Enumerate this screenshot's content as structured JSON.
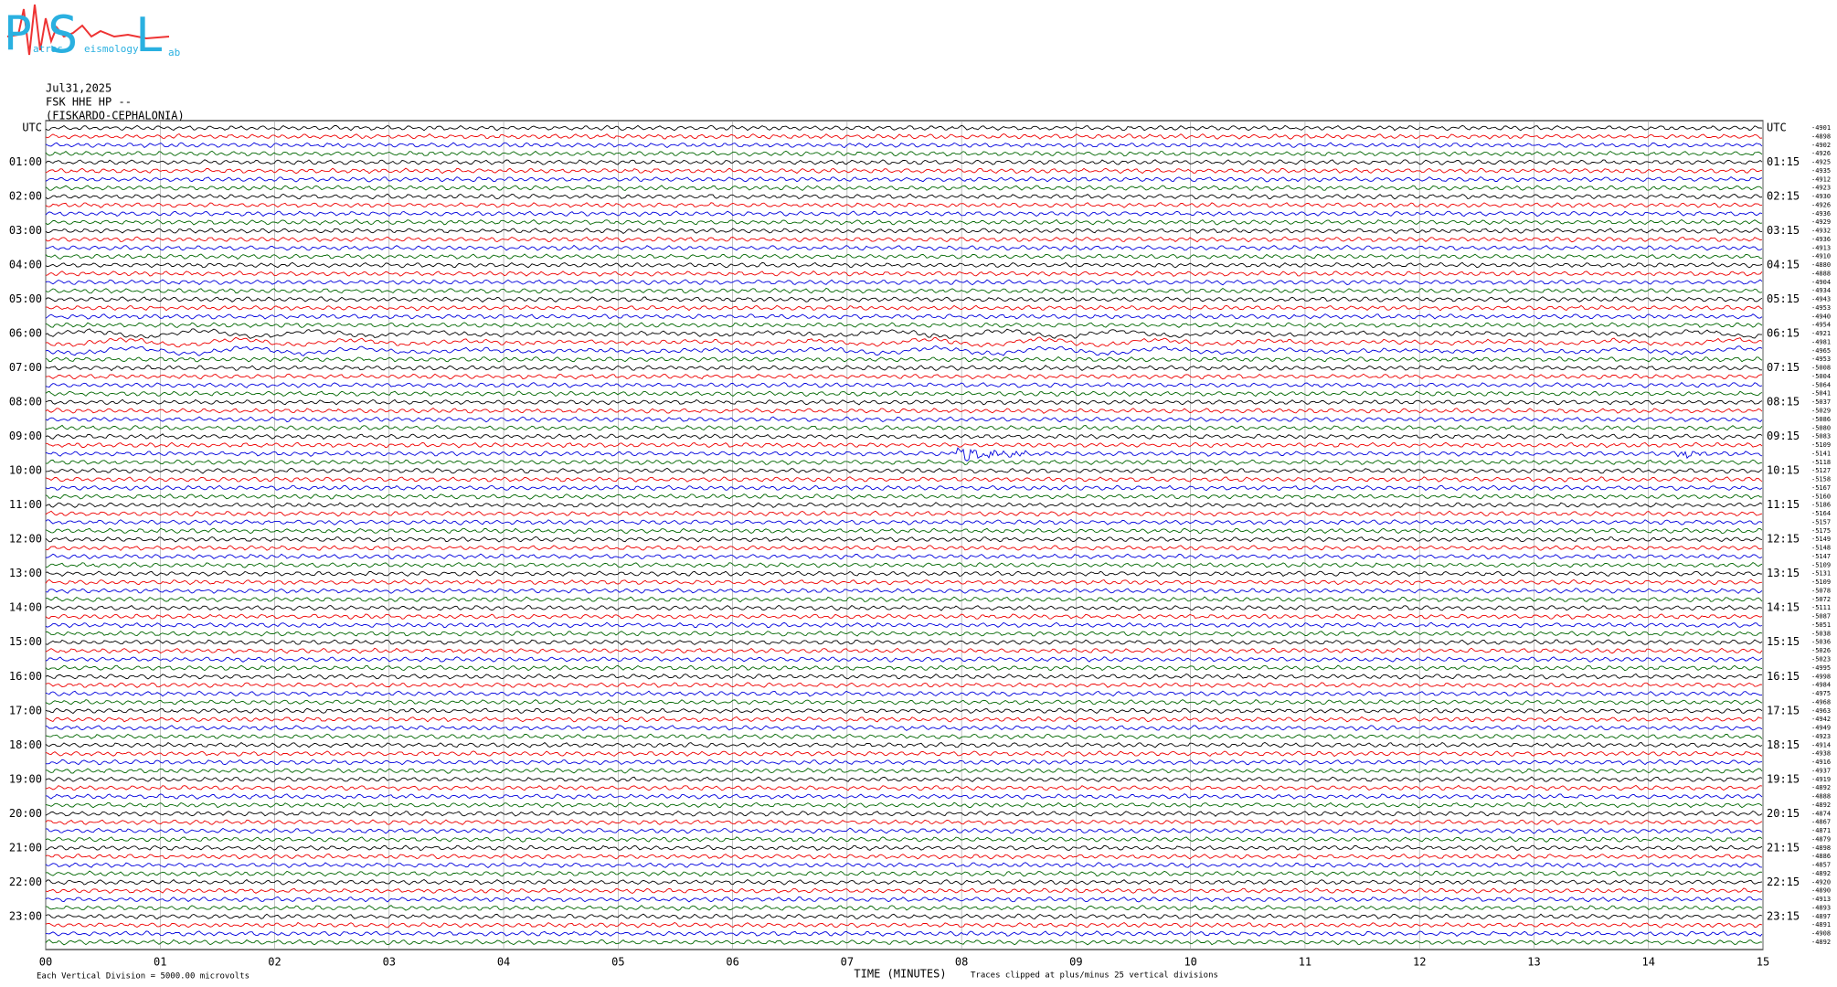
{
  "logo": {
    "p": "P",
    "s": "S",
    "l": "L",
    "small": [
      "atras",
      "eismology",
      "ab"
    ]
  },
  "header": {
    "date": "Jul31,2025",
    "station": "FSK HHE HP --",
    "location": "(FISKARDO-CEPHALONIA)"
  },
  "left_labels": [
    "UTC",
    "01:00",
    "02:00",
    "03:00",
    "04:00",
    "05:00",
    "06:00",
    "07:00",
    "08:00",
    "09:00",
    "10:00",
    "11:00",
    "12:00",
    "13:00",
    "14:00",
    "15:00",
    "16:00",
    "17:00",
    "18:00",
    "19:00",
    "20:00",
    "21:00",
    "22:00",
    "23:00"
  ],
  "right_labels": [
    "UTC",
    "01:15",
    "02:15",
    "03:15",
    "04:15",
    "05:15",
    "06:15",
    "07:15",
    "08:15",
    "09:15",
    "10:15",
    "11:15",
    "12:15",
    "13:15",
    "14:15",
    "15:15",
    "16:15",
    "17:15",
    "18:15",
    "19:15",
    "20:15",
    "21:15",
    "22:15",
    "23:15"
  ],
  "trace_offsets": [
    -4901,
    -4898,
    -4902,
    -4926,
    -4925,
    -4935,
    -4912,
    -4923,
    -4930,
    -4926,
    -4936,
    -4929,
    -4932,
    -4936,
    -4913,
    -4910,
    -4880,
    -4888,
    -4904,
    -4934,
    -4943,
    -4953,
    -4940,
    -4954,
    -4921,
    -4981,
    -4965,
    -4953,
    -5008,
    -5004,
    -5064,
    -5041,
    -5037,
    -5029,
    -5086,
    -5080,
    -5083,
    -5109,
    -5141,
    -5118,
    -5127,
    -5158,
    -5167,
    -5160,
    -5186,
    -5164,
    -5157,
    -5175,
    -5149,
    -5148,
    -5147,
    -5109,
    -5131,
    -5109,
    -5078,
    -5072,
    -5111,
    -5087,
    -5051,
    -5038,
    -5036,
    -5026,
    -5023,
    -4995,
    -4998,
    -4984,
    -4975,
    -4968,
    -4963,
    -4942,
    -4949,
    -4923,
    -4914,
    -4938,
    -4916,
    -4937,
    -4919,
    -4892,
    -4888,
    -4892,
    -4874,
    -4867,
    -4871,
    -4879,
    -4898,
    -4886,
    -4857,
    -4892,
    -4920,
    -4890,
    -4913,
    -4893,
    -4897,
    -4891,
    -4908,
    -4892
  ],
  "x_labels": [
    "00",
    "01",
    "02",
    "03",
    "04",
    "05",
    "06",
    "07",
    "08",
    "09",
    "10",
    "11",
    "12",
    "13",
    "14",
    "15"
  ],
  "footer": {
    "division": "Each Vertical Division = 5000.00 microvolts",
    "axis_title": "TIME (MINUTES)",
    "clip": "Traces clipped at plus/minus 25 vertical divisions"
  }
}
